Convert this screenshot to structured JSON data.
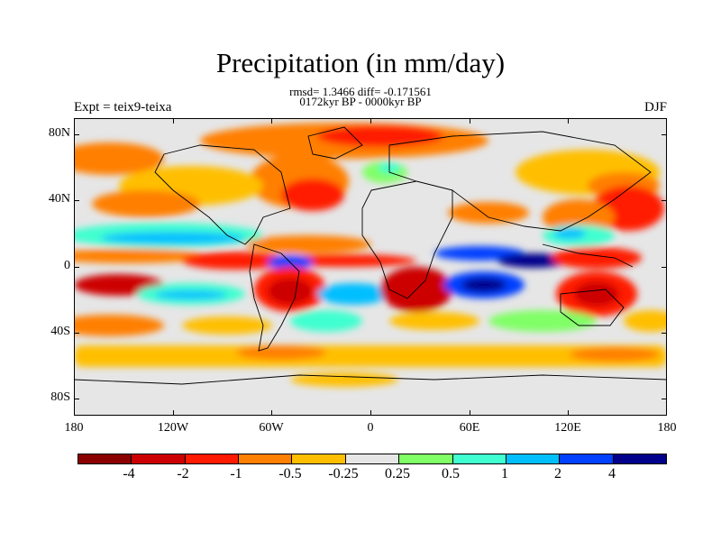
{
  "title": "Precipitation (in mm/day)",
  "stats": "rmsd= 1.3466 diff= -0.171561",
  "period": "0172kyr BP - 0000kyr BP",
  "experiment": "Expt = teix9-teixa",
  "season": "DJF",
  "map": {
    "projection": "cylindrical-equidistant",
    "lon_range": [
      -180,
      180
    ],
    "lat_range": [
      -90,
      90
    ],
    "ocean_neutral_color": "#e6e6e6",
    "coastline_color": "#000000",
    "y_tick_labels": [
      "80N",
      "40N",
      "0",
      "40S",
      "80S"
    ],
    "x_tick_labels": [
      "180",
      "120W",
      "60W",
      "0",
      "60E",
      "120E",
      "180"
    ]
  },
  "colorbar": {
    "colors": [
      "#8b0000",
      "#cd0000",
      "#ff1a00",
      "#ff7f00",
      "#ffbf00",
      "#e6e6e6",
      "#80ff66",
      "#40ffd0",
      "#00bfff",
      "#0040ff",
      "#00008b"
    ],
    "labels": [
      "-4",
      "-2",
      "-1",
      "-0.5",
      "-0.25",
      "0.25",
      "0.5",
      "1",
      "2",
      "4"
    ]
  }
}
